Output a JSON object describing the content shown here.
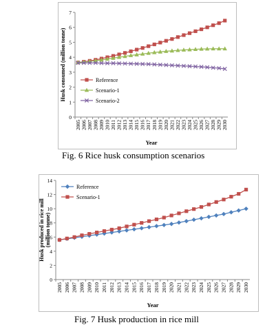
{
  "figures": [
    {
      "caption": "Fig. 6  Rice husk consumption scenarios"
    },
    {
      "caption": "Fig. 7  Husk production in rice mill"
    }
  ],
  "chart_data": [
    {
      "type": "line",
      "title": "",
      "xlabel": "Year",
      "ylabel": "Husk consumed (million tonne)",
      "ylim": [
        0,
        7
      ],
      "yticks": [
        0,
        1,
        2,
        3,
        4,
        5,
        6,
        7
      ],
      "grid": false,
      "legend": "center-left",
      "categories": [
        "2005",
        "2006",
        "2007",
        "2008",
        "2009",
        "2010",
        "2011",
        "2012",
        "2013",
        "2014",
        "2015",
        "2016",
        "2017",
        "2018",
        "2019",
        "2020",
        "2021",
        "2022",
        "2023",
        "2024",
        "2025",
        "2026",
        "2027",
        "2028",
        "2029",
        "2030"
      ],
      "series": [
        {
          "name": "Reference",
          "color": "#c0504d",
          "marker": "square",
          "values": [
            3.65,
            3.7,
            3.76,
            3.83,
            3.91,
            4.0,
            4.09,
            4.19,
            4.29,
            4.4,
            4.51,
            4.62,
            4.74,
            4.86,
            4.98,
            5.1,
            5.22,
            5.35,
            5.48,
            5.61,
            5.74,
            5.87,
            6.0,
            6.14,
            6.28,
            6.45
          ]
        },
        {
          "name": "Scenario-1",
          "color": "#9bbb59",
          "marker": "triangle",
          "values": [
            3.65,
            3.68,
            3.72,
            3.77,
            3.82,
            3.88,
            3.94,
            4.0,
            4.06,
            4.12,
            4.17,
            4.22,
            4.27,
            4.32,
            4.36,
            4.4,
            4.43,
            4.46,
            4.49,
            4.51,
            4.53,
            4.55,
            4.56,
            4.57,
            4.57,
            4.57
          ]
        },
        {
          "name": "Scenario-2",
          "color": "#8064a2",
          "marker": "x",
          "values": [
            3.62,
            3.62,
            3.62,
            3.62,
            3.61,
            3.6,
            3.6,
            3.59,
            3.58,
            3.57,
            3.56,
            3.55,
            3.54,
            3.52,
            3.5,
            3.48,
            3.46,
            3.44,
            3.42,
            3.4,
            3.38,
            3.36,
            3.33,
            3.3,
            3.27,
            3.22
          ]
        }
      ]
    },
    {
      "type": "line",
      "title": "",
      "xlabel": "Year",
      "ylabel": "Husk produced in rice mill (million tonne)",
      "ylim": [
        0,
        14
      ],
      "yticks": [
        0,
        2,
        4,
        6,
        8,
        10,
        12,
        14
      ],
      "grid": false,
      "legend": "top-left",
      "categories": [
        "2005",
        "2006",
        "2007",
        "2008",
        "2009",
        "2010",
        "2011",
        "2012",
        "2013",
        "2014",
        "2015",
        "2016",
        "2017",
        "2018",
        "2019",
        "2020",
        "2021",
        "2022",
        "2023",
        "2024",
        "2025",
        "2026",
        "2027",
        "2028",
        "2029",
        "2030"
      ],
      "series": [
        {
          "name": "Reference",
          "color": "#4f81bd",
          "marker": "diamond",
          "values": [
            5.6,
            5.75,
            5.9,
            6.05,
            6.2,
            6.35,
            6.5,
            6.65,
            6.8,
            6.95,
            7.1,
            7.25,
            7.4,
            7.55,
            7.7,
            7.85,
            8.05,
            8.25,
            8.45,
            8.65,
            8.85,
            9.05,
            9.25,
            9.5,
            9.75,
            10.0
          ]
        },
        {
          "name": "Scenario-1",
          "color": "#c0504d",
          "marker": "square",
          "values": [
            5.6,
            5.8,
            6.0,
            6.25,
            6.45,
            6.65,
            6.85,
            7.05,
            7.25,
            7.5,
            7.75,
            8.0,
            8.25,
            8.5,
            8.75,
            9.05,
            9.35,
            9.65,
            9.95,
            10.25,
            10.6,
            10.95,
            11.3,
            11.7,
            12.1,
            12.7
          ]
        }
      ]
    }
  ]
}
